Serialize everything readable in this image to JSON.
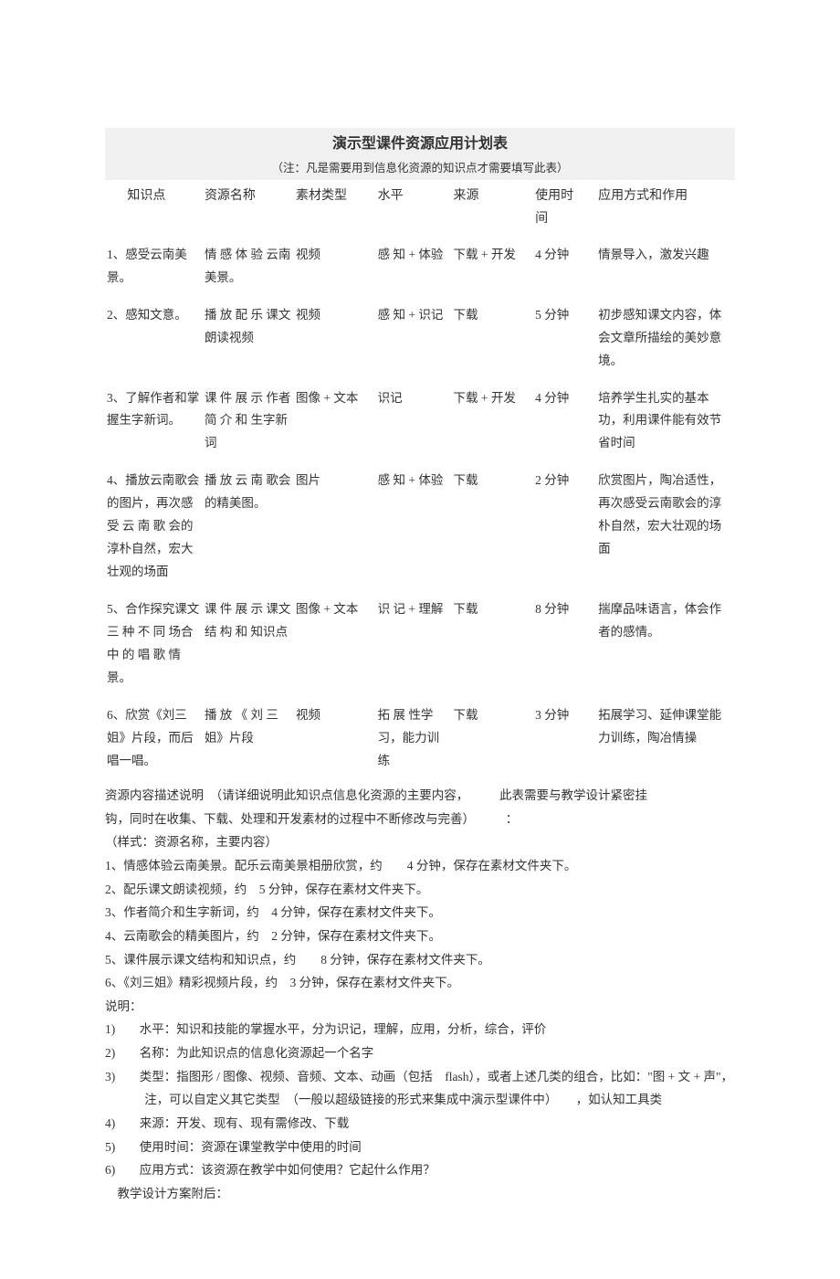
{
  "title": "演示型课件资源应用计划表",
  "subtitle": "（注：凡是需要用到信息化资源的知识点才需要填写此表）",
  "columns": {
    "kp": "知识点",
    "name": "资源名称",
    "type": "素材类型",
    "level": "水平",
    "src": "来源",
    "time_l1": "使用时",
    "time_l2": "间",
    "use": "应用方式和作用"
  },
  "rows": [
    {
      "kp": "1、感受云南美景。",
      "name": "情 感 体 验 云南美景。",
      "type": "视频",
      "level": "感 知 + 体验",
      "src": "下载 + 开发",
      "time": "4 分钟",
      "use": "情景导入，激发兴趣"
    },
    {
      "kp": "2、感知文意。",
      "name": "播 放 配 乐 课文朗读视频",
      "type": "视频",
      "level": "感 知 + 识记",
      "src": "下载",
      "time": "5 分钟",
      "use": "初步感知课文内容，体会文章所描绘的美妙意境。"
    },
    {
      "kp": "3、了解作者和掌握生字新词。",
      "name": "课 件 展 示 作者 简 介 和 生字新词",
      "type": "图像 + 文本",
      "level": "识记",
      "src": "下载 + 开发",
      "time": "4 分钟",
      "use": "培养学生扎实的基本功，利用课件能有效节省时间"
    },
    {
      "kp": "4、播放云南歌会的图片，再次感 受 云 南 歌 会的淳朴自然，宏大壮观的场面",
      "name": "播 放 云 南 歌会的精美图。",
      "type": "图片",
      "level": "感 知 + 体验",
      "src": "下载",
      "time": "2 分钟",
      "use": "欣赏图片，陶冶适性，再次感受云南歌会的淳朴自然，宏大壮观的场面"
    },
    {
      "kp": "5、合作探究课文 三 种 不 同 场合 中 的 唱 歌 情景。",
      "name": "课 件 展 示 课文 结 构 和 知识点",
      "type": "图像 + 文本",
      "level": "识 记 + 理解",
      "src": "下载",
      "time": "8 分钟",
      "use": "揣摩品味语言，体会作者的感情。"
    },
    {
      "kp": "6、欣赏《刘三姐》片段，而后唱一唱。",
      "name": "播 放 《 刘 三姐》片段",
      "type": "视频",
      "level": "拓 展 性学习，能力训练",
      "src": "下载",
      "time": "3 分钟",
      "use": "拓展学习、延伸课堂能力训练，陶冶情操"
    }
  ],
  "desc_intro_a": "资源内容描述说明　（请详细说明此知识点信息化资源的主要内容，",
  "desc_intro_b": "此表需要与教学设计紧密挂",
  "desc_intro_c": "钩，同时在收集、下载、处理和开发素材的过程中不断修改与完善）",
  "desc_intro_d": "：",
  "desc_sample": "（样式：资源名称，主要内容）",
  "desc_items": [
    "1、情感体验云南美景。配乐云南美景相册欣赏，约　　4 分钟，保存在素材文件夹下。",
    "2、配乐课文朗读视频，约　5 分钟，保存在素材文件夹下。",
    "3、作者简介和生字新词，约　4 分钟，保存在素材文件夹下。",
    "4、云南歌会的精美图片，约　2 分钟，保存在素材文件夹下。",
    "5、课件展示课文结构和知识点，约　　8 分钟，保存在素材文件夹下。",
    "6、《刘三姐》精彩视频片段，约　3 分钟，保存在素材文件夹下。"
  ],
  "explain_head": "说明：",
  "explain": [
    {
      "n": "1)",
      "t": "水平：知识和技能的掌握水平，分为识记，理解，应用，分析，综合，评价"
    },
    {
      "n": "2)",
      "t": "名称：为此知识点的信息化资源起一个名字"
    },
    {
      "n": "3)",
      "t": "类型：指图形 / 图像、视频、音频、文本、动画（包括　flash），或者上述几类的组合，比如：\"图 + 文 + 声\"，注，可以自定义其它类型　（一般以超级链接的形式来集成中演示型课件中）　　，如认知工具类"
    },
    {
      "n": "4)",
      "t": "来源：开发、现有、现有需修改、下载"
    },
    {
      "n": "5)",
      "t": "使用时间：资源在课堂教学中使用的时间"
    },
    {
      "n": "6)",
      "t": "应用方式：该资源在教学中如何使用？它起什么作用？"
    }
  ],
  "footer": "教学设计方案附后："
}
